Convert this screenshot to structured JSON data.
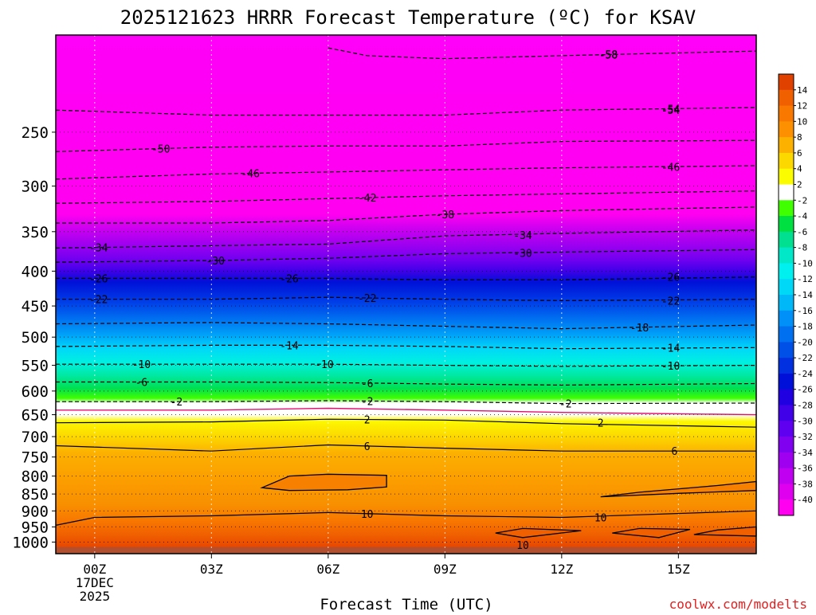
{
  "chart_data": {
    "type": "heatmap",
    "title": "2025121623 HRRR Forecast Temperature (ºC) for KSAV",
    "xlabel": "Forecast Time (UTC)",
    "ylabel": "",
    "credit": "coolwx.com/modelts",
    "x_range_hours": [
      -1,
      17
    ],
    "y_range_hpa": [
      180,
      1040
    ],
    "y_scale": "log-pressure",
    "x_ticks": [
      {
        "hour": 0,
        "label": "00Z",
        "sub1": "17DEC",
        "sub2": "2025"
      },
      {
        "hour": 3,
        "label": "03Z",
        "sub1": "",
        "sub2": ""
      },
      {
        "hour": 6,
        "label": "06Z",
        "sub1": "",
        "sub2": ""
      },
      {
        "hour": 9,
        "label": "09Z",
        "sub1": "",
        "sub2": ""
      },
      {
        "hour": 12,
        "label": "12Z",
        "sub1": "",
        "sub2": ""
      },
      {
        "hour": 15,
        "label": "15Z",
        "sub1": "",
        "sub2": ""
      }
    ],
    "y_ticks": [
      250,
      300,
      350,
      400,
      450,
      500,
      550,
      600,
      650,
      700,
      750,
      800,
      850,
      900,
      950,
      1000
    ],
    "colorbar": {
      "labels": [
        14,
        12,
        10,
        8,
        6,
        4,
        2,
        -2,
        -4,
        -6,
        -8,
        -10,
        -12,
        -14,
        -16,
        -18,
        -20,
        -22,
        -24,
        -26,
        -28,
        -30,
        -32,
        -34,
        -36,
        -38,
        -40
      ],
      "colors": [
        "#e04000",
        "#f06000",
        "#f87800",
        "#fc9000",
        "#fcb000",
        "#fcd800",
        "#fcfc00",
        "#ffffff",
        "#40ff00",
        "#00e040",
        "#00e090",
        "#00e8c8",
        "#00f0f0",
        "#00d8f8",
        "#00b8f8",
        "#0090f8",
        "#0070f0",
        "#0050e8",
        "#0030e0",
        "#0010d8",
        "#2000e0",
        "#4000e8",
        "#6000f0",
        "#8000f0",
        "#a000f0",
        "#c000f0",
        "#e000f0",
        "#ff00f0"
      ]
    },
    "isotherms": [
      {
        "value": -58,
        "label_hour": 13.2,
        "levels": [
          [
            6.0,
            188
          ],
          [
            7.0,
            193
          ],
          [
            9.0,
            195
          ],
          [
            12.0,
            193
          ],
          [
            17.0,
            190
          ]
        ]
      },
      {
        "value": -54,
        "label_hour": 14.8,
        "levels": [
          [
            -1,
            232
          ],
          [
            3,
            236
          ],
          [
            6,
            236
          ],
          [
            9,
            236
          ],
          [
            12,
            232
          ],
          [
            17,
            230
          ]
        ]
      },
      {
        "value": -50,
        "label_hour": 1.7,
        "levels": [
          [
            -1,
            267
          ],
          [
            3,
            263
          ],
          [
            6,
            262
          ],
          [
            9,
            262
          ],
          [
            12,
            258
          ],
          [
            17,
            257
          ]
        ]
      },
      {
        "value": -46,
        "label_hour": 4.0,
        "levels": [
          [
            -1,
            293
          ],
          [
            3,
            288
          ],
          [
            6,
            286
          ],
          [
            9,
            284
          ],
          [
            12,
            282
          ],
          [
            17,
            280
          ]
        ]
      },
      {
        "value": -42,
        "label_hour": 7.0,
        "levels": [
          [
            -1,
            318
          ],
          [
            3,
            316
          ],
          [
            6,
            313
          ],
          [
            9,
            310
          ],
          [
            12,
            308
          ],
          [
            17,
            305
          ]
        ]
      },
      {
        "value": -38,
        "label_hour": 9.0,
        "levels": [
          [
            -1,
            340
          ],
          [
            3,
            340
          ],
          [
            6,
            337
          ],
          [
            9,
            330
          ],
          [
            12,
            326
          ],
          [
            17,
            322
          ]
        ]
      },
      {
        "value": -34,
        "label_hour": 0.1,
        "levels": [
          [
            -1,
            370
          ],
          [
            3,
            367
          ],
          [
            6,
            365
          ],
          [
            9,
            355
          ],
          [
            12,
            352
          ],
          [
            17,
            348
          ]
        ]
      },
      {
        "value": -30,
        "label_hour": 3.1,
        "levels": [
          [
            -1,
            388
          ],
          [
            3,
            386
          ],
          [
            6,
            383
          ],
          [
            9,
            377
          ],
          [
            12,
            375
          ],
          [
            17,
            372
          ]
        ]
      },
      {
        "value": -26,
        "label_hour": 0.1,
        "levels": [
          [
            -1,
            410
          ],
          [
            3,
            410
          ],
          [
            6,
            410
          ],
          [
            9,
            412
          ],
          [
            12,
            412
          ],
          [
            17,
            408
          ]
        ]
      },
      {
        "value": -22,
        "label_hour": 7.0,
        "levels": [
          [
            -1,
            440
          ],
          [
            3,
            440
          ],
          [
            6,
            437
          ],
          [
            9,
            440
          ],
          [
            12,
            442
          ],
          [
            17,
            440
          ]
        ]
      },
      {
        "value": -18,
        "label_hour": 14.0,
        "levels": [
          [
            -1,
            478
          ],
          [
            3,
            476
          ],
          [
            6,
            478
          ],
          [
            9,
            482
          ],
          [
            12,
            486
          ],
          [
            17,
            480
          ]
        ]
      },
      {
        "value": -14,
        "label_hour": 5.0,
        "levels": [
          [
            -1,
            516
          ],
          [
            3,
            514
          ],
          [
            6,
            514
          ],
          [
            9,
            516
          ],
          [
            12,
            520
          ],
          [
            17,
            518
          ]
        ]
      },
      {
        "value": -10,
        "label_hour": 1.2,
        "levels": [
          [
            -1,
            548
          ],
          [
            3,
            548
          ],
          [
            6,
            548
          ],
          [
            9,
            550
          ],
          [
            12,
            552
          ],
          [
            17,
            550
          ]
        ]
      },
      {
        "value": -6,
        "label_hour": 1.2,
        "levels": [
          [
            -1,
            582
          ],
          [
            3,
            582
          ],
          [
            6,
            583
          ],
          [
            9,
            586
          ],
          [
            12,
            588
          ],
          [
            17,
            585
          ]
        ]
      },
      {
        "value": -2,
        "label_hour": 7.0,
        "levels": [
          [
            -1,
            622
          ],
          [
            3,
            622
          ],
          [
            6,
            620
          ],
          [
            9,
            622
          ],
          [
            12,
            626
          ],
          [
            17,
            625
          ]
        ]
      },
      {
        "value": 2,
        "label_hour": 7.0,
        "levels": [
          [
            -1,
            668
          ],
          [
            3,
            666
          ],
          [
            6,
            660
          ],
          [
            9,
            662
          ],
          [
            12,
            670
          ],
          [
            17,
            678
          ]
        ]
      },
      {
        "value": 6,
        "label_hour": 7.0,
        "levels": [
          [
            -1,
            722
          ],
          [
            3,
            735
          ],
          [
            6,
            720
          ],
          [
            9,
            728
          ],
          [
            12,
            735
          ],
          [
            17,
            735
          ]
        ]
      },
      {
        "value": 10,
        "label_hour": 7.0,
        "levels": [
          [
            -1,
            945
          ],
          [
            0,
            920
          ],
          [
            3,
            915
          ],
          [
            6,
            905
          ],
          [
            9,
            915
          ],
          [
            12,
            920
          ],
          [
            17,
            900
          ]
        ]
      }
    ],
    "closed_contours": [
      {
        "value": 6,
        "label_hour": 16.0,
        "points": [
          [
            4.3,
            832
          ],
          [
            5.0,
            800
          ],
          [
            6.0,
            795
          ],
          [
            7.5,
            798
          ],
          [
            7.5,
            830
          ],
          [
            6.5,
            838
          ],
          [
            5.0,
            840
          ],
          [
            4.3,
            832
          ]
        ]
      },
      {
        "value": 6,
        "label_hour": 16.0,
        "points": [
          [
            13.0,
            858
          ],
          [
            14.0,
            845
          ],
          [
            16.0,
            826
          ],
          [
            17.0,
            815
          ],
          [
            17.0,
            840
          ],
          [
            15.0,
            848
          ],
          [
            13.0,
            858
          ]
        ]
      },
      {
        "value": 10,
        "label_hour": 12.0,
        "points": [
          [
            10.3,
            970
          ],
          [
            11.0,
            955
          ],
          [
            12.5,
            962
          ],
          [
            11.0,
            985
          ],
          [
            10.3,
            970
          ]
        ]
      },
      {
        "value": 10,
        "label_hour": 14.0,
        "points": [
          [
            13.3,
            970
          ],
          [
            14.0,
            955
          ],
          [
            15.3,
            958
          ],
          [
            14.5,
            985
          ],
          [
            13.3,
            970
          ]
        ]
      },
      {
        "value": 10,
        "label_hour": 16.0,
        "points": [
          [
            15.4,
            975
          ],
          [
            16.0,
            960
          ],
          [
            17.0,
            950
          ],
          [
            17.0,
            980
          ],
          [
            15.4,
            975
          ]
        ]
      }
    ],
    "isotherm_labels_extra": [
      {
        "value": -58,
        "hour": 13.2,
        "hpa": 192
      },
      {
        "value": -54,
        "hour": 14.8,
        "hpa": 232
      },
      {
        "value": -46,
        "hour": 14.8,
        "hpa": 281
      },
      {
        "value": -34,
        "hour": 11.0,
        "hpa": 354
      },
      {
        "value": -30,
        "hour": 11.0,
        "hpa": 376
      },
      {
        "value": -26,
        "hour": 5.0,
        "hpa": 410
      },
      {
        "value": -26,
        "hour": 14.8,
        "hpa": 408
      },
      {
        "value": -22,
        "hour": 0.1,
        "hpa": 440
      },
      {
        "value": -22,
        "hour": 14.8,
        "hpa": 442
      },
      {
        "value": -14,
        "hour": 14.8,
        "hpa": 518
      },
      {
        "value": -10,
        "hour": 5.9,
        "hpa": 548
      },
      {
        "value": -10,
        "hour": 14.8,
        "hpa": 551
      },
      {
        "value": -6,
        "hour": 7.0,
        "hpa": 584
      },
      {
        "value": -2,
        "hour": 2.1,
        "hpa": 622
      },
      {
        "value": -2,
        "hour": 12.1,
        "hpa": 626
      },
      {
        "value": 2,
        "hour": 13.0,
        "hpa": 668
      },
      {
        "value": 6,
        "hour": 14.9,
        "hpa": 735
      },
      {
        "value": 10,
        "hour": 13.0,
        "hpa": 920
      },
      {
        "value": 10,
        "hour": 11.0,
        "hpa": 1010
      }
    ],
    "surface_line_hpa": 1020
  }
}
